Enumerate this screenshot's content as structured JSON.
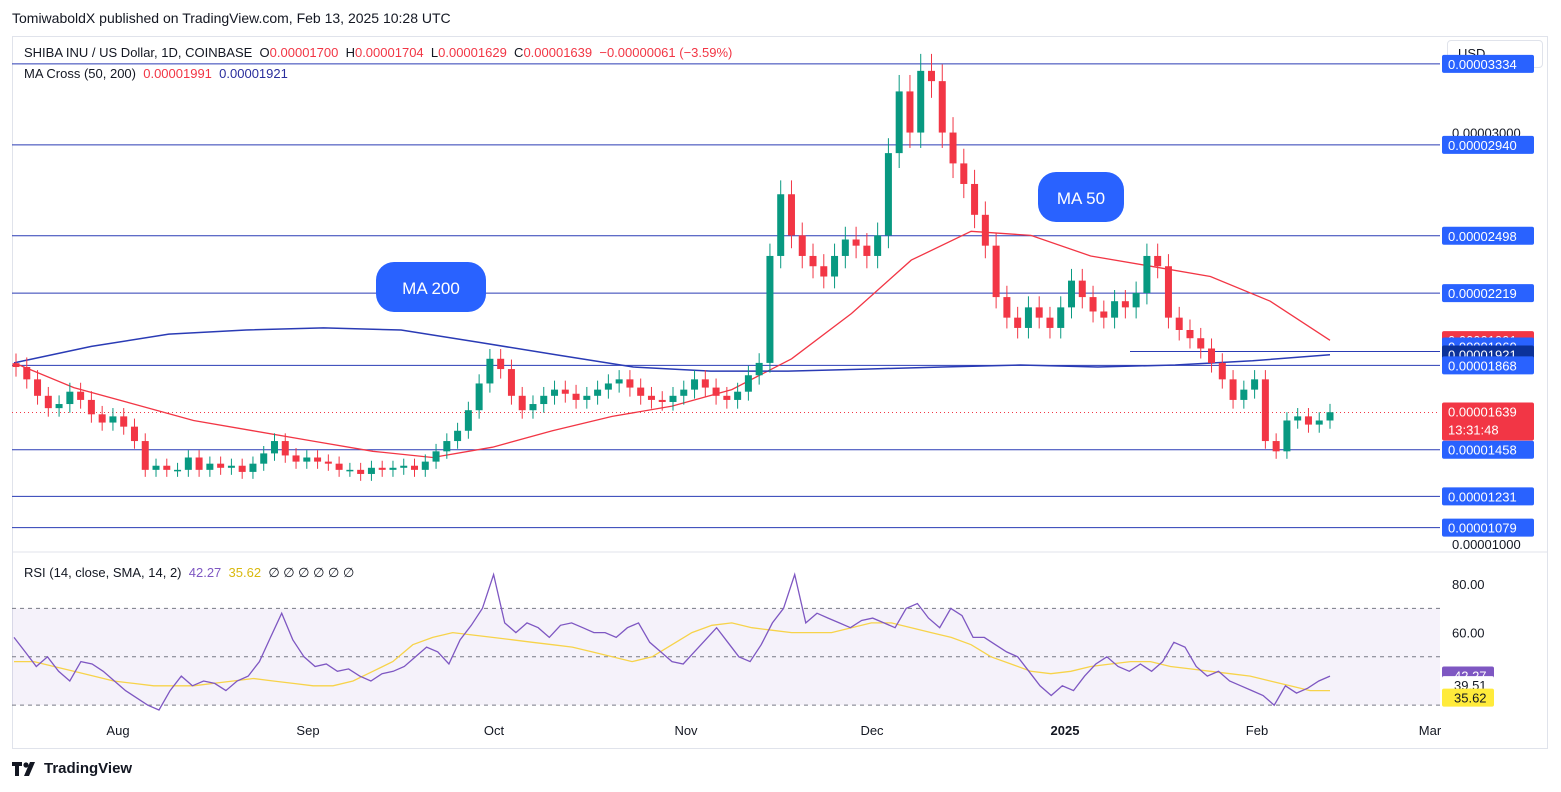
{
  "header": {
    "published": "TomiwaboldX published on TradingView.com, Feb 13, 2025 10:28 UTC"
  },
  "legend": {
    "symbol": "SHIBA INU / US Dollar, 1D, COINBASE",
    "o_label": "O",
    "o": "0.00001700",
    "h_label": "H",
    "h": "0.00001704",
    "l_label": "L",
    "l": "0.00001629",
    "c_label": "C",
    "c": "0.00001639",
    "change": "−0.00000061 (−3.59%)",
    "ma_name": "MA Cross (50, 200)",
    "ma50_value": "0.00001991",
    "ma200_value": "0.00001921",
    "rsi_name": "RSI (14, close, SMA, 14, 2)",
    "rsi_value": "42.27",
    "rsi_sma_value": "35.62",
    "rsi_extra": "∅ ∅ ∅ ∅ ∅ ∅"
  },
  "currency_button": "USD",
  "footer": {
    "brand": "TradingView"
  },
  "callouts": {
    "ma200": "MA 200",
    "ma50": "MA 50"
  },
  "chart_data": [
    {
      "type": "candlestick",
      "title": "SHIBA INU / US Dollar, 1D, COINBASE",
      "x_ticks": [
        "Aug",
        "Sep",
        "Oct",
        "Nov",
        "Dec",
        "2025",
        "Jan",
        "Feb",
        "Mar"
      ],
      "y_ticks": [
        "0.00003000",
        "0.00001000"
      ],
      "ylim": [
        9.8e-06,
        3.45e-05
      ],
      "horizontal_levels": [
        3.334e-05,
        2.94e-05,
        2.498e-05,
        2.219e-05,
        1.868e-05,
        1.458e-05,
        1.231e-05,
        1.079e-05
      ],
      "price_labels": [
        {
          "text": "0.00003334",
          "value": 3.334e-05,
          "bg": "#2962ff"
        },
        {
          "text": "0.00002940",
          "value": 2.94e-05,
          "bg": "#2962ff"
        },
        {
          "text": "0.00002498",
          "value": 2.498e-05,
          "bg": "#2962ff"
        },
        {
          "text": "0.00002219",
          "value": 2.219e-05,
          "bg": "#2962ff"
        },
        {
          "text": "0.00001991",
          "value": 1.991e-05,
          "bg": "#f23645"
        },
        {
          "text": "0.00001960",
          "value": 1.96e-05,
          "bg": "#2962ff"
        },
        {
          "text": "0.00001921",
          "value": 1.921e-05,
          "bg": "#0c3299"
        },
        {
          "text": "0.00001868",
          "value": 1.868e-05,
          "bg": "#2962ff"
        },
        {
          "text": "0.00001639",
          "value": 1.639e-05,
          "bg": "#f23645"
        },
        {
          "text": "0.00001458",
          "value": 1.458e-05,
          "bg": "#2962ff"
        },
        {
          "text": "0.00001231",
          "value": 1.231e-05,
          "bg": "#2962ff"
        },
        {
          "text": "0.00001079",
          "value": 1.079e-05,
          "bg": "#2962ff"
        }
      ],
      "countdown": "13:31:48",
      "last_price": 1.639e-05,
      "colors": {
        "up": "#089981",
        "down": "#f23645",
        "ma50": "#f23645",
        "ma200": "#2a3bb5",
        "level": "#2a3bb5"
      },
      "series": [
        {
          "name": "Price (daily closes, approx.)",
          "values": [
            1.86e-05,
            1.8e-05,
            1.72e-05,
            1.66e-05,
            1.68e-05,
            1.74e-05,
            1.7e-05,
            1.63e-05,
            1.59e-05,
            1.62e-05,
            1.57e-05,
            1.5e-05,
            1.36e-05,
            1.38e-05,
            1.36e-05,
            1.36e-05,
            1.42e-05,
            1.36e-05,
            1.39e-05,
            1.37e-05,
            1.38e-05,
            1.35e-05,
            1.39e-05,
            1.44e-05,
            1.5e-05,
            1.43e-05,
            1.4e-05,
            1.42e-05,
            1.4e-05,
            1.39e-05,
            1.36e-05,
            1.36e-05,
            1.34e-05,
            1.37e-05,
            1.36e-05,
            1.37e-05,
            1.38e-05,
            1.36e-05,
            1.4e-05,
            1.45e-05,
            1.5e-05,
            1.55e-05,
            1.65e-05,
            1.78e-05,
            1.9e-05,
            1.85e-05,
            1.72e-05,
            1.65e-05,
            1.68e-05,
            1.72e-05,
            1.75e-05,
            1.73e-05,
            1.7e-05,
            1.72e-05,
            1.75e-05,
            1.78e-05,
            1.8e-05,
            1.76e-05,
            1.72e-05,
            1.7e-05,
            1.69e-05,
            1.72e-05,
            1.75e-05,
            1.8e-05,
            1.76e-05,
            1.72e-05,
            1.7e-05,
            1.74e-05,
            1.82e-05,
            1.88e-05,
            2.4e-05,
            2.7e-05,
            2.5e-05,
            2.4e-05,
            2.35e-05,
            2.3e-05,
            2.4e-05,
            2.48e-05,
            2.45e-05,
            2.4e-05,
            2.5e-05,
            2.9e-05,
            3.2e-05,
            3e-05,
            3.3e-05,
            3.25e-05,
            3e-05,
            2.85e-05,
            2.75e-05,
            2.6e-05,
            2.45e-05,
            2.2e-05,
            2.1e-05,
            2.05e-05,
            2.15e-05,
            2.1e-05,
            2.05e-05,
            2.15e-05,
            2.28e-05,
            2.2e-05,
            2.13e-05,
            2.1e-05,
            2.18e-05,
            2.15e-05,
            2.22e-05,
            2.4e-05,
            2.35e-05,
            2.1e-05,
            2.04e-05,
            2e-05,
            1.95e-05,
            1.88e-05,
            1.8e-05,
            1.7e-05,
            1.75e-05,
            1.8e-05,
            1.5e-05,
            1.45e-05,
            1.6e-05,
            1.62e-05,
            1.58e-05,
            1.6e-05,
            1.64e-05
          ]
        },
        {
          "name": "MA 50 (approx.)",
          "values": [
            1.88e-05,
            1.76e-05,
            1.68e-05,
            1.6e-05,
            1.55e-05,
            1.5e-05,
            1.45e-05,
            1.42e-05,
            1.47e-05,
            1.55e-05,
            1.62e-05,
            1.67e-05,
            1.75e-05,
            1.9e-05,
            2.12e-05,
            2.38e-05,
            2.52e-05,
            2.5e-05,
            2.4e-05,
            2.35e-05,
            2.3e-05,
            2.18e-05,
            1.99e-05
          ]
        },
        {
          "name": "MA 200 (approx.)",
          "values": [
            1.88e-05,
            1.96e-05,
            2.02e-05,
            2.04e-05,
            2.05e-05,
            2.04e-05,
            1.98e-05,
            1.92e-05,
            1.86e-05,
            1.84e-05,
            1.84e-05,
            1.85e-05,
            1.86e-05,
            1.87e-05,
            1.86e-05,
            1.87e-05,
            1.89e-05,
            1.92e-05
          ]
        }
      ]
    },
    {
      "type": "line",
      "title": "RSI (14, close, SMA, 14, 2)",
      "y_ticks": [
        "80.00",
        "60.00"
      ],
      "ylim": [
        28,
        90
      ],
      "bands": [
        70,
        50,
        30
      ],
      "value_labels": [
        {
          "text": "42.27",
          "value": 42.27,
          "bg": "#7e57c2",
          "fg": "#ffffff"
        },
        {
          "text": "39.51",
          "value": 39.51,
          "bg": "#ffffff",
          "fg": "#131722"
        },
        {
          "text": "35.62",
          "value": 35.62,
          "bg": "#ffeb3b",
          "fg": "#131722"
        }
      ],
      "series": [
        {
          "name": "RSI",
          "color": "#7e57c2",
          "values": [
            58,
            52,
            46,
            50,
            44,
            40,
            48,
            47,
            44,
            40,
            36,
            33,
            30,
            28,
            36,
            42,
            38,
            40,
            39,
            36,
            40,
            42,
            48,
            58,
            68,
            57,
            50,
            46,
            47,
            44,
            45,
            42,
            40,
            43,
            44,
            46,
            50,
            54,
            52,
            47,
            57,
            63,
            70,
            84,
            64,
            60,
            64,
            62,
            58,
            63,
            64,
            62,
            60,
            60,
            58,
            62,
            64,
            56,
            52,
            48,
            47,
            52,
            57,
            62,
            56,
            50,
            48,
            55,
            64,
            70,
            84,
            64,
            68,
            66,
            64,
            62,
            65,
            66,
            64,
            62,
            70,
            72,
            66,
            62,
            70,
            67,
            58,
            58,
            55,
            52,
            50,
            44,
            38,
            34,
            38,
            36,
            42,
            47,
            50,
            46,
            44,
            47,
            44,
            48,
            56,
            54,
            46,
            42,
            44,
            40,
            38,
            36,
            34,
            30,
            38,
            35,
            37,
            40,
            42
          ]
        },
        {
          "name": "RSI-based MA",
          "color": "#f7d34a",
          "values": [
            48,
            48,
            46,
            44,
            42,
            40,
            39,
            38,
            38,
            38,
            39,
            40,
            41,
            40,
            39,
            38,
            38,
            40,
            44,
            48,
            55,
            58,
            60,
            59,
            58,
            57,
            56,
            55,
            54,
            52,
            50,
            48,
            50,
            55,
            60,
            63,
            64,
            62,
            61,
            60,
            60,
            60,
            62,
            64,
            64,
            62,
            60,
            58,
            55,
            50,
            47,
            44,
            43,
            44,
            46,
            47,
            48,
            48,
            46,
            45,
            44,
            43,
            42,
            40,
            38,
            36,
            36
          ]
        }
      ]
    }
  ]
}
